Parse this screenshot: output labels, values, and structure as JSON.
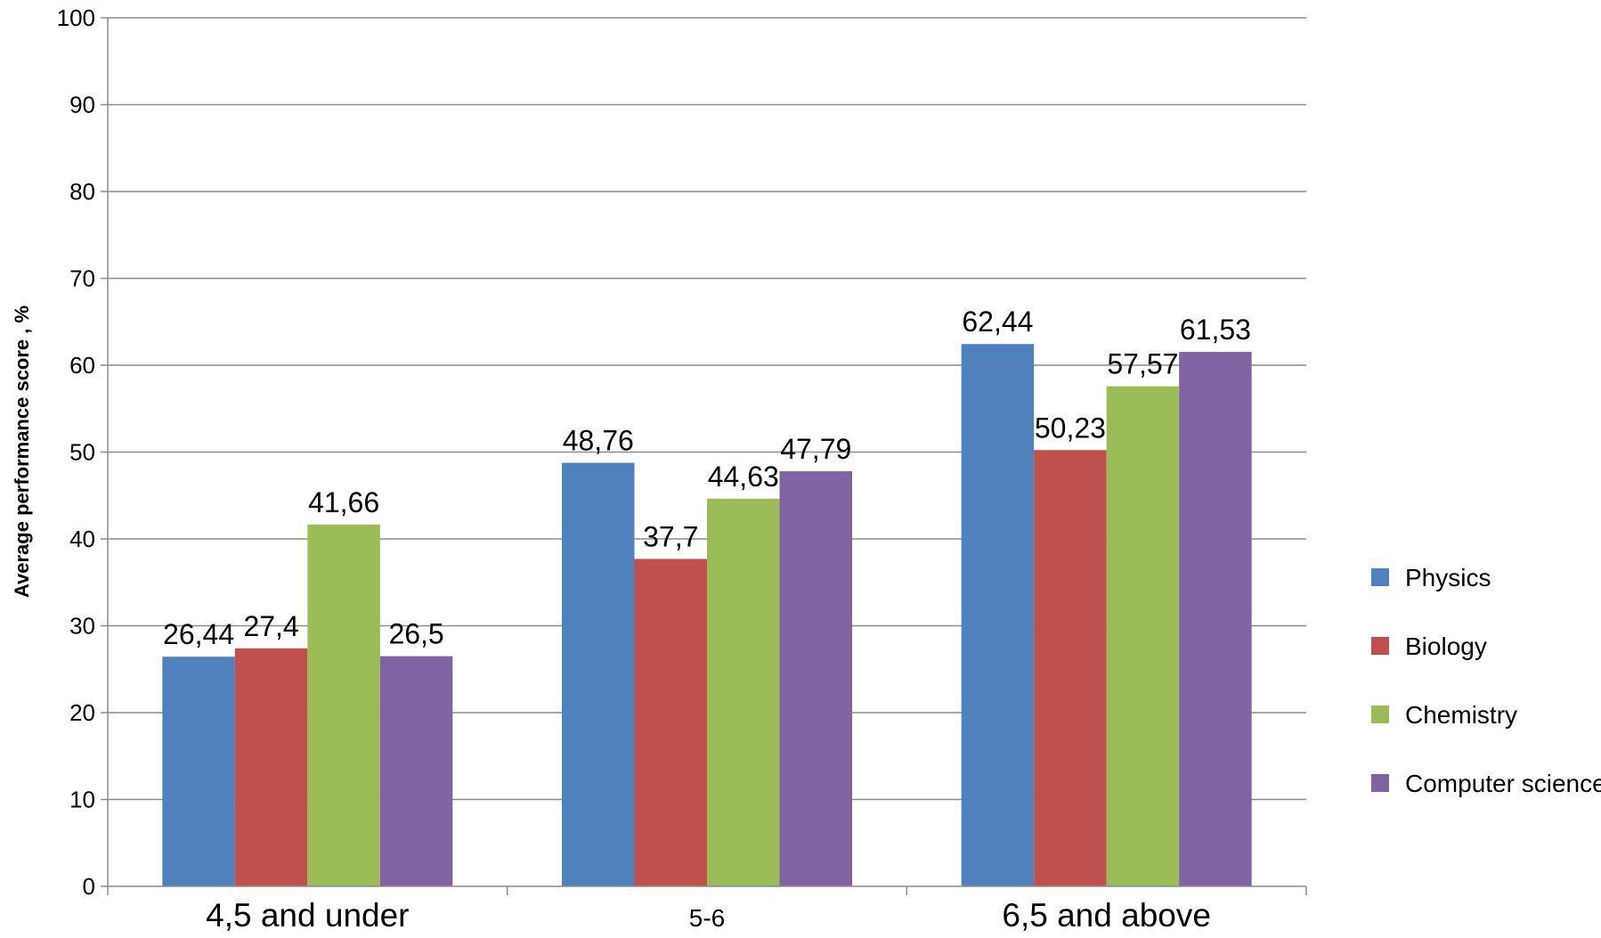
{
  "chart_data": {
    "type": "bar",
    "categories": [
      "4,5 and under",
      "5-6",
      "6,5 and above"
    ],
    "series": [
      {
        "name": "Physics",
        "color": "#4F81BD",
        "values": [
          26.44,
          48.76,
          62.44
        ],
        "labels": [
          "26,44",
          "48,76",
          "62,44"
        ]
      },
      {
        "name": "Biology",
        "color": "#C0504D",
        "values": [
          27.4,
          37.7,
          50.23
        ],
        "labels": [
          "27,4",
          "37,7",
          "50,23"
        ]
      },
      {
        "name": "Chemistry",
        "color": "#9BBB59",
        "values": [
          41.66,
          44.63,
          57.57
        ],
        "labels": [
          "41,66",
          "44,63",
          "57,57"
        ]
      },
      {
        "name": "Computer science",
        "color": "#8064A2",
        "values": [
          26.5,
          47.79,
          61.53
        ],
        "labels": [
          "26,5",
          "47,79",
          "61,53"
        ]
      }
    ],
    "ylabel": "Average performance score , %",
    "ylim": [
      0,
      100
    ],
    "yticks": [
      0,
      10,
      20,
      30,
      40,
      50,
      60,
      70,
      80,
      90,
      100
    ],
    "grid": true,
    "legend": "right"
  }
}
